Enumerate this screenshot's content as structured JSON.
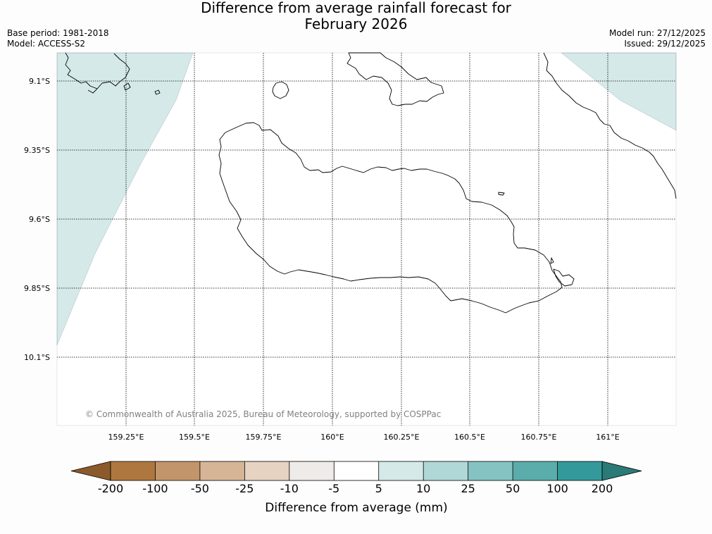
{
  "title_line1": "Difference from average rainfall forecast for",
  "title_line2": "February 2026",
  "base_period": "Base period: 1981-2018",
  "model": "Model: ACCESS-S2",
  "model_run": "Model run: 27/12/2025",
  "issued": "Issued: 29/12/2025",
  "copyright": "© Commonwealth of Australia 2025, Bureau of Meteorology, supported by COSPPac",
  "lat_labels": [
    "9.1°S",
    "9.35°S",
    "9.6°S",
    "9.85°S",
    "10.1°S"
  ],
  "lon_labels": [
    "159.25°E",
    "159.5°E",
    "159.75°E",
    "160°E",
    "160.25°E",
    "160.5°E",
    "160.75°E",
    "161°E"
  ],
  "colorbar": {
    "label": "Difference from average (mm)",
    "ticks": [
      "-200",
      "-100",
      "-50",
      "-25",
      "-10",
      "-5",
      "5",
      "10",
      "25",
      "50",
      "100",
      "200"
    ],
    "under_color": "#8c5a2a",
    "over_color": "#2a7a78",
    "colors": [
      "#ad773f",
      "#c3956a",
      "#d6b596",
      "#e6d3c2",
      "#efebe8",
      "#ffffff",
      "#d4e9e8",
      "#afd8d7",
      "#84c3c1",
      "#5aadab",
      "#34999a"
    ]
  },
  "shaded_regions": [
    "5 to 10 mm above average over western edge",
    "5 to 10 mm above average over north-east corner"
  ]
}
